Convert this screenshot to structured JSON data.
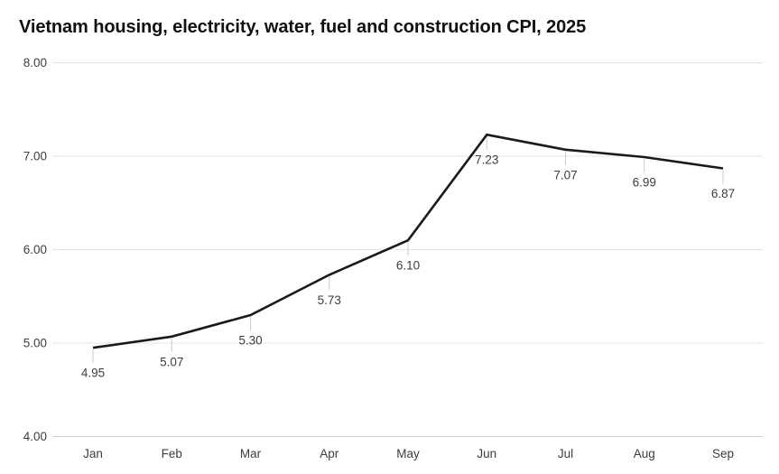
{
  "page": {
    "background_color": "#ffffff"
  },
  "chart_data": {
    "type": "line",
    "title": "Vietnam housing, electricity, water, fuel and construction CPI, 2025",
    "categories": [
      "Jan",
      "Feb",
      "Mar",
      "Apr",
      "May",
      "Jun",
      "Jul",
      "Aug",
      "Sep"
    ],
    "values": [
      4.95,
      5.07,
      5.3,
      5.73,
      6.1,
      7.23,
      7.07,
      6.99,
      6.87
    ],
    "data_labels": [
      "4.95",
      "5.07",
      "5.30",
      "5.73",
      "6.10",
      "7.23",
      "7.07",
      "6.99",
      "6.87"
    ],
    "xlabel": "",
    "ylabel": "",
    "ylim": [
      4,
      8
    ],
    "y_ticks": [
      4,
      5,
      6,
      7,
      8
    ],
    "y_tick_labels": [
      "4.00",
      "5.00",
      "6.00",
      "7.00",
      "8.00"
    ],
    "grid": "horizontal-only",
    "legend": "none",
    "colors": {
      "line": "#1a1a1a",
      "gridline": "#e4e4e4",
      "baseline": "#cfcfcf",
      "leader_line": "#cccccc",
      "tick_label": "#3d3d3d",
      "data_label": "#3d3d3d",
      "title": "#111111"
    }
  }
}
